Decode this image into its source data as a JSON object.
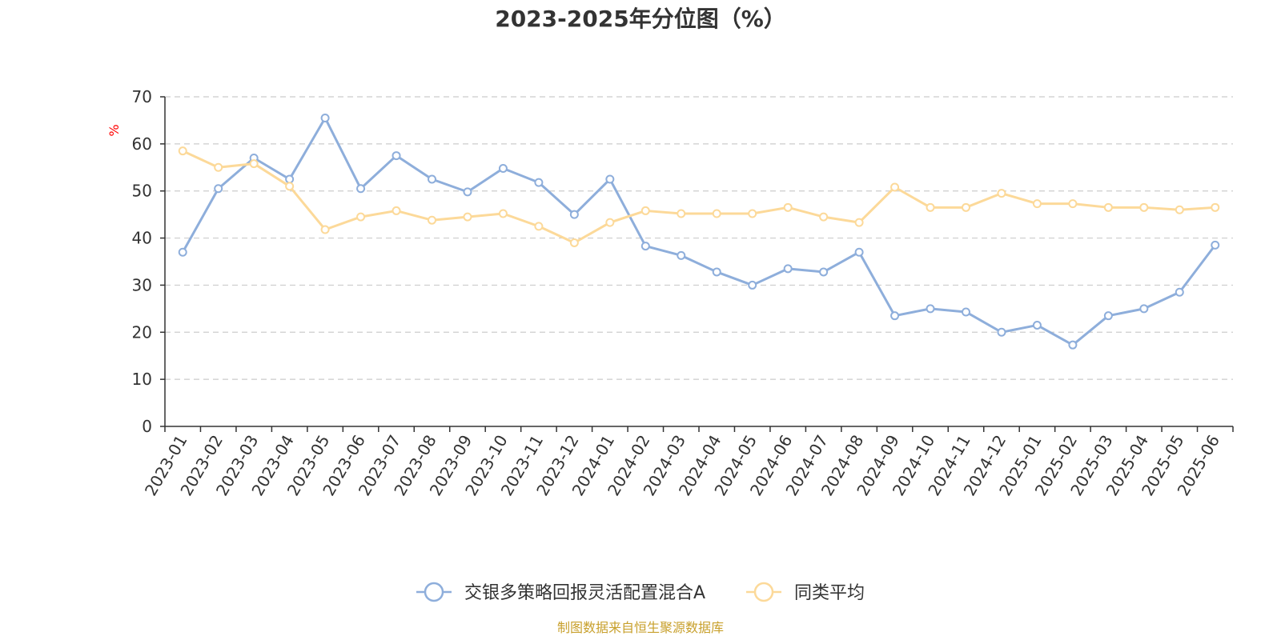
{
  "chart_data": {
    "type": "line",
    "title": "2023-2025年分位图（%）",
    "ylabel": "%",
    "ylim": [
      0,
      70
    ],
    "yticks": [
      0,
      10,
      20,
      30,
      40,
      50,
      60,
      70
    ],
    "grid": true,
    "legend_position": "bottom-center",
    "categories": [
      "2023-01",
      "2023-02",
      "2023-03",
      "2023-04",
      "2023-05",
      "2023-06",
      "2023-07",
      "2023-08",
      "2023-09",
      "2023-10",
      "2023-11",
      "2023-12",
      "2024-01",
      "2024-02",
      "2024-03",
      "2024-04",
      "2024-05",
      "2024-06",
      "2024-07",
      "2024-08",
      "2024-09",
      "2024-10",
      "2024-11",
      "2024-12",
      "2025-01",
      "2025-02",
      "2025-03",
      "2025-04",
      "2025-05",
      "2025-06"
    ],
    "series": [
      {
        "name": "交银多策略回报灵活配置混合A",
        "color": "#8eaedb",
        "values": [
          37,
          50.5,
          57,
          52.5,
          65.5,
          50.5,
          57.5,
          52.5,
          49.8,
          54.8,
          51.8,
          45,
          52.5,
          38.3,
          36.3,
          32.8,
          30,
          33.5,
          32.8,
          37,
          23.5,
          25,
          24.3,
          20,
          21.5,
          17.3,
          23.5,
          25,
          28.5,
          38.5
        ]
      },
      {
        "name": "同类平均",
        "color": "#fcd999",
        "values": [
          58.5,
          55,
          55.8,
          51,
          41.8,
          44.5,
          45.8,
          43.8,
          44.5,
          45.2,
          42.5,
          39,
          43.3,
          45.8,
          45.2,
          45.2,
          45.2,
          46.5,
          44.5,
          43.3,
          50.8,
          46.5,
          46.5,
          49.5,
          47.3,
          47.3,
          46.5,
          46.5,
          46,
          46.5
        ]
      }
    ]
  },
  "source_note": "制图数据来自恒生聚源数据库"
}
